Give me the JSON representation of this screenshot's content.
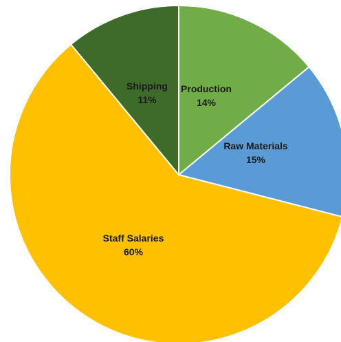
{
  "chart_data": {
    "type": "pie",
    "title": "",
    "slices": [
      {
        "label": "Production",
        "value": 14,
        "value_label": "14%",
        "color": "#70AD47",
        "text_color": "#1a1a1a"
      },
      {
        "label": "Raw Materials",
        "value": 15,
        "value_label": "15%",
        "color": "#5B9BD5",
        "text_color": "#1a1a1a"
      },
      {
        "label": "Staff Salaries",
        "value": 60,
        "value_label": "60%",
        "color": "#FFC000",
        "text_color": "#1a1a1a"
      },
      {
        "label": "Shipping",
        "value": 11,
        "value_label": "11%",
        "color": "#3F6B2A",
        "text_color": "#1a1a1a"
      }
    ],
    "start_angle_deg": 0,
    "direction": "clockwise",
    "legend": "none",
    "data_labels": "inside"
  }
}
